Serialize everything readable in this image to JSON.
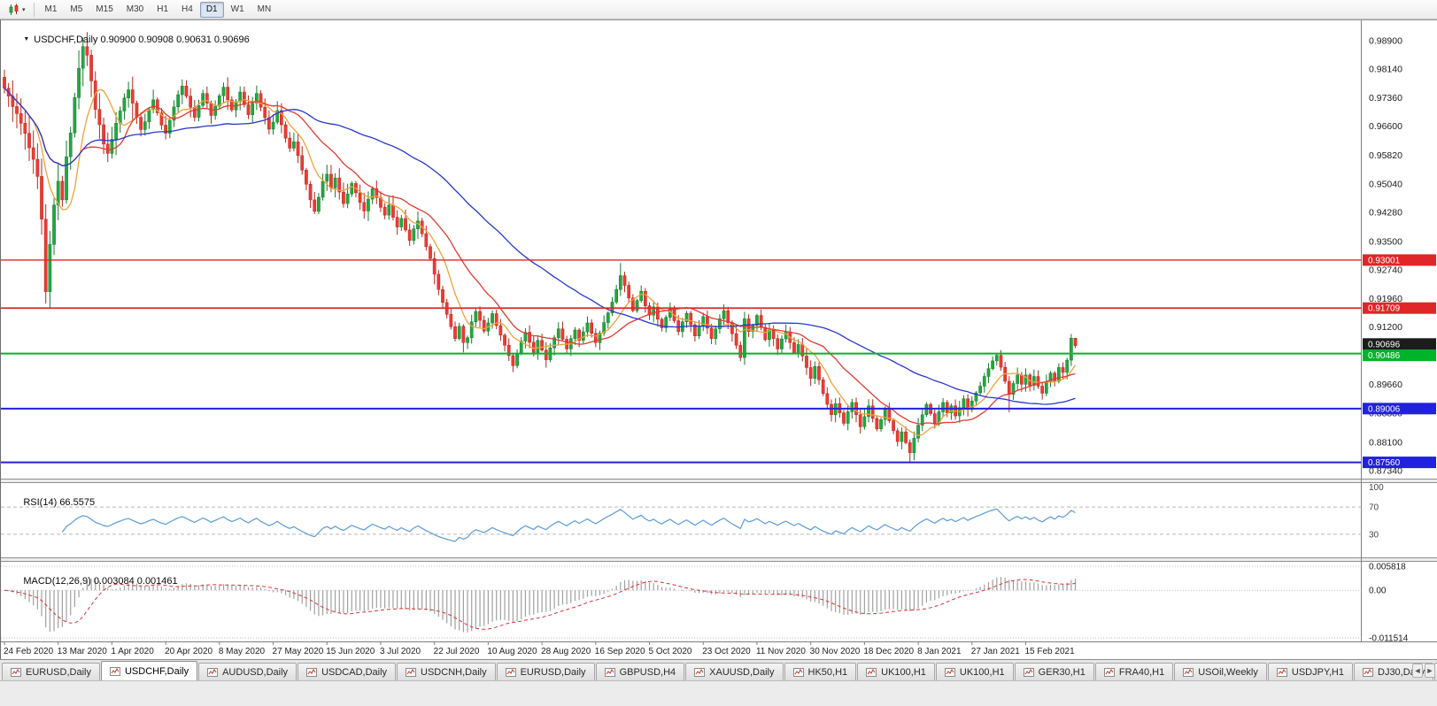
{
  "toolbar": {
    "timeframes": [
      "M1",
      "M5",
      "M15",
      "M30",
      "H1",
      "H4",
      "D1",
      "W1",
      "MN"
    ],
    "active_timeframe": "D1",
    "chart_menu_caret": "▾"
  },
  "main_panel": {
    "collapse_arrow": "▼",
    "symbol_label": "USDCHF,Daily",
    "ohlc": "0.90900 0.90908 0.90631 0.90696"
  },
  "rsi_panel": {
    "label": "RSI(14)",
    "value": "66.5575"
  },
  "macd_panel": {
    "label": "MACD(12,26,9)",
    "values": "0.003084 0.001461"
  },
  "tabs": {
    "active_index": 1,
    "items": [
      "EURUSD,Daily",
      "USDCHF,Daily",
      "AUDUSD,Daily",
      "USDCAD,Daily",
      "USDCNH,Daily",
      "EURUSD,Daily",
      "GBPUSD,H4",
      "XAUUSD,Daily",
      "HK50,H1",
      "UK100,H1",
      "UK100,H1",
      "GER30,H1",
      "FRA40,H1",
      "USOil,Weekly",
      "USDJPY,H1",
      "DJ30,Daily",
      "CHINA300,H1"
    ],
    "scroll_left": "◄",
    "scroll_right": "►"
  },
  "chart_data": {
    "type": "candlestick",
    "symbol": "USDCHF",
    "timeframe": "Daily",
    "current": {
      "open": 0.909,
      "high": 0.90908,
      "low": 0.90631,
      "close": 0.90696
    },
    "up_color": "#22a93f",
    "up_stroke": "#157a2c",
    "down_color": "#ef3b30",
    "down_stroke": "#b5271f",
    "price_axis": {
      "min": 0.8717,
      "max": 0.994,
      "ticks": [
        "0.98900",
        "0.98140",
        "0.97360",
        "0.96600",
        "0.95820",
        "0.95040",
        "0.94280",
        "0.93500",
        "0.92740",
        "0.91960",
        "0.91200",
        "0.90420",
        "0.89660",
        "0.88880",
        "0.88100",
        "0.87340"
      ]
    },
    "x_labels": [
      "24 Feb 2020",
      "13 Mar 2020",
      "1 Apr 2020",
      "20 Apr 2020",
      "8 May 2020",
      "27 May 2020",
      "15 Jun 2020",
      "3 Jul 2020",
      "22 Jul 2020",
      "10 Aug 2020",
      "28 Aug 2020",
      "16 Sep 2020",
      "5 Oct 2020",
      "23 Oct 2020",
      "11 Nov 2020",
      "30 Nov 2020",
      "18 Dec 2020",
      "8 Jan 2021",
      "27 Jan 2021",
      "15 Feb 2021"
    ],
    "candles_per_label": 13,
    "first_open": 0.9792,
    "closes": [
      0.9762,
      0.9741,
      0.9713,
      0.9694,
      0.9668,
      0.9641,
      0.9602,
      0.9571,
      0.9525,
      0.941,
      0.9215,
      0.9342,
      0.9448,
      0.9512,
      0.9462,
      0.9578,
      0.9642,
      0.9737,
      0.9816,
      0.9874,
      0.9851,
      0.9782,
      0.9705,
      0.9664,
      0.9612,
      0.9587,
      0.9625,
      0.9668,
      0.9701,
      0.9736,
      0.9758,
      0.9722,
      0.9684,
      0.9651,
      0.9672,
      0.9705,
      0.9731,
      0.9696,
      0.9663,
      0.9641,
      0.9676,
      0.9712,
      0.9745,
      0.9768,
      0.9741,
      0.9711,
      0.9684,
      0.9716,
      0.9748,
      0.9722,
      0.9689,
      0.9714,
      0.9742,
      0.9765,
      0.9731,
      0.9704,
      0.9726,
      0.9752,
      0.9718,
      0.9691,
      0.9722,
      0.9748,
      0.9711,
      0.9683,
      0.9652,
      0.9671,
      0.9702,
      0.9664,
      0.9628,
      0.9601,
      0.9618,
      0.9581,
      0.9542,
      0.9504,
      0.9462,
      0.9431,
      0.9469,
      0.9512,
      0.9531,
      0.9494,
      0.9521,
      0.9483,
      0.9452,
      0.9478,
      0.9506,
      0.9481,
      0.9455,
      0.9432,
      0.9464,
      0.9492,
      0.9468,
      0.9442,
      0.9421,
      0.9448,
      0.9415,
      0.9389,
      0.9412,
      0.9381,
      0.9353,
      0.9384,
      0.9405,
      0.9371,
      0.9336,
      0.9304,
      0.9262,
      0.9221,
      0.9186,
      0.9154,
      0.9121,
      0.9089,
      0.9122,
      0.9078,
      0.9091,
      0.9134,
      0.9162,
      0.9138,
      0.9109,
      0.9131,
      0.9156,
      0.9124,
      0.9098,
      0.9071,
      0.9043,
      0.9016,
      0.9049,
      0.9082,
      0.9106,
      0.9079,
      0.9052,
      0.9084,
      0.9058,
      0.9032,
      0.9064,
      0.9091,
      0.9115,
      0.9087,
      0.9061,
      0.9089,
      0.9112,
      0.9084,
      0.9107,
      0.9131,
      0.9103,
      0.9078,
      0.9104,
      0.9132,
      0.9158,
      0.9187,
      0.9221,
      0.9258,
      0.9232,
      0.9198,
      0.9164,
      0.9191,
      0.9216,
      0.9177,
      0.9152,
      0.9174,
      0.9141,
      0.9118,
      0.9146,
      0.9169,
      0.9137,
      0.9108,
      0.9134,
      0.9157,
      0.9126,
      0.9096,
      0.9122,
      0.9148,
      0.9117,
      0.9089,
      0.9115,
      0.9142,
      0.9164,
      0.9132,
      0.9102,
      0.9071,
      0.9038,
      0.9142,
      0.9108,
      0.9124,
      0.9151,
      0.9119,
      0.9086,
      0.9112,
      0.9089,
      0.9061,
      0.9088,
      0.9107,
      0.9078,
      0.9051,
      0.9073,
      0.9042,
      0.9011,
      0.8982,
      0.9014,
      0.8978,
      0.8941,
      0.8912,
      0.8884,
      0.8914,
      0.8889,
      0.8861,
      0.8892,
      0.8917,
      0.8884,
      0.8852,
      0.8879,
      0.8908,
      0.8874,
      0.8846,
      0.8871,
      0.8899,
      0.8868,
      0.8841,
      0.8812,
      0.8838,
      0.8809,
      0.8782,
      0.8821,
      0.8856,
      0.8884,
      0.8912,
      0.8887,
      0.8861,
      0.8892,
      0.8917,
      0.8889,
      0.8908,
      0.8881,
      0.8903,
      0.8927,
      0.8898,
      0.8921,
      0.8943,
      0.8961,
      0.8987,
      0.9008,
      0.9029,
      0.9044,
      0.9012,
      0.8974,
      0.8939,
      0.8968,
      0.8991,
      0.8966,
      0.8991,
      0.8963,
      0.8987,
      0.8961,
      0.8942,
      0.8971,
      0.8996,
      0.8974,
      0.9011,
      0.8998,
      0.9031,
      0.909,
      0.90696
    ],
    "wick_overrides": {
      "0": [
        0.9812,
        null
      ],
      "10": [
        null,
        0.9183
      ],
      "19": [
        0.98985,
        null
      ],
      "111": [
        null,
        0.9052
      ],
      "123": [
        null,
        0.8999
      ],
      "149": [
        0.9292,
        null
      ],
      "219": [
        null,
        0.8757
      ],
      "240": [
        0.9047,
        null
      ],
      "243": [
        null,
        0.8891
      ],
      "259": [
        0.90908,
        0.90631
      ]
    },
    "horizontal_lines": [
      {
        "price": 0.93001,
        "label": "0.93001",
        "color": "#e02626",
        "width": 1.4
      },
      {
        "price": 0.91709,
        "label": "0.91709",
        "color": "#e02626",
        "width": 1.8
      },
      {
        "price": 0.90486,
        "label": "0.90486",
        "color": "#00b42a",
        "width": 2
      },
      {
        "price": 0.89006,
        "label": "0.89006",
        "color": "#2121dd",
        "width": 2
      },
      {
        "price": 0.8756,
        "label": "0.87560",
        "color": "#2121dd",
        "width": 2
      }
    ],
    "current_price_tag": {
      "price": 0.90696,
      "label": "0.90696",
      "color": "#1c1c1c"
    },
    "moving_averages": [
      {
        "type": "sma",
        "period": 8,
        "color": "#eda23b"
      },
      {
        "type": "sma",
        "period": 20,
        "color": "#e33a2f"
      },
      {
        "type": "sma",
        "period": 55,
        "color": "#2638cf"
      }
    ],
    "rsi": {
      "period": 14,
      "current": 66.5575,
      "color": "#5b9bd5",
      "levels": [
        70,
        30
      ],
      "axis_labels": [
        "100",
        "70",
        "30"
      ]
    },
    "macd": {
      "fast": 12,
      "slow": 26,
      "signal_period": 9,
      "macd_value": 0.003084,
      "signal_value": 0.001461,
      "range": [
        -0.011514,
        0.005818
      ],
      "axis_labels": [
        "0.005818",
        "0.00",
        "-0.011514"
      ],
      "histogram_color": "#a0a0a0",
      "signal_color": "#d63333"
    }
  }
}
